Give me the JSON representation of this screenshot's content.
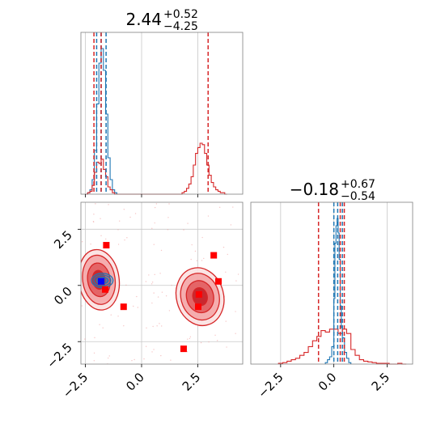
{
  "chart_data": [
    {
      "type": "histogram",
      "panel": "top-left",
      "title": {
        "base": "2.44",
        "sup": "+0.52",
        "sub": "−4.25"
      },
      "x_range": [
        -2.7,
        4.5
      ],
      "grid": true,
      "show_x_ticks": false,
      "series": [
        {
          "color": "#1f77b4",
          "bin_edges": [
            -2.4,
            -2.3,
            -2.2,
            -2.1,
            -2.0,
            -1.9,
            -1.8,
            -1.7,
            -1.6,
            -1.5,
            -1.4,
            -1.3,
            -1.2,
            -1.1
          ],
          "counts": [
            0.01,
            0.03,
            0.1,
            0.3,
            0.62,
            0.9,
            1.0,
            0.85,
            0.55,
            0.25,
            0.1,
            0.03,
            0.01
          ],
          "quantile_lines": [
            -2.0,
            -1.8,
            -1.58
          ]
        },
        {
          "color": "#d62728",
          "bin_edges": [
            -2.5,
            -2.4,
            -2.3,
            -2.2,
            -2.1,
            -2.0,
            -1.9,
            -1.8,
            -1.7,
            -1.6,
            -1.5,
            -1.4,
            -1.3,
            -1.2,
            -1.1,
            -1.0,
            -0.9,
            -0.8,
            -0.7,
            -0.6,
            -0.5,
            -0.4,
            -0.3,
            -0.2,
            -0.1,
            0.0,
            0.1,
            0.2,
            0.3,
            0.4,
            0.5,
            0.6,
            0.7,
            0.8,
            0.9,
            1.0,
            1.1,
            1.2,
            1.3,
            1.4,
            1.5,
            1.6,
            1.7,
            1.8,
            1.9,
            2.0,
            2.1,
            2.2,
            2.3,
            2.4,
            2.5,
            2.6,
            2.7,
            2.8,
            2.9,
            3.0,
            3.1,
            3.2,
            3.3,
            3.4,
            3.5,
            3.6,
            3.7,
            3.8
          ],
          "counts": [
            0.0,
            0.01,
            0.02,
            0.06,
            0.15,
            0.22,
            0.21,
            0.24,
            0.17,
            0.12,
            0.05,
            0.03,
            0.01,
            0.0,
            0.0,
            0.0,
            0.0,
            0.0,
            0.0,
            0.0,
            0.0,
            0.0,
            0.0,
            0.0,
            0.0,
            0.0,
            0.0,
            0.0,
            0.0,
            0.0,
            0.0,
            0.0,
            0.0,
            0.0,
            0.0,
            0.0,
            0.0,
            0.0,
            0.0,
            0.0,
            0.0,
            0.0,
            0.0,
            0.01,
            0.02,
            0.04,
            0.07,
            0.12,
            0.2,
            0.28,
            0.32,
            0.35,
            0.34,
            0.28,
            0.2,
            0.13,
            0.08,
            0.05,
            0.03,
            0.02,
            0.01,
            0.01,
            0.0
          ],
          "quantile_lines": [
            -2.12,
            -1.8,
            2.96
          ]
        }
      ]
    },
    {
      "type": "histogram",
      "panel": "bottom-right",
      "title": {
        "base": "−0.18",
        "sup": "+0.67",
        "sub": "−0.54"
      },
      "x_range": [
        -3.9,
        3.7
      ],
      "x_ticks": [
        -2.5,
        0.0,
        2.5
      ],
      "x_tick_labels": [
        "−2.5",
        "0.0",
        "2.5"
      ],
      "grid": true,
      "series": [
        {
          "color": "#1f77b4",
          "bin_edges": [
            -0.4,
            -0.3,
            -0.2,
            -0.1,
            0.0,
            0.05,
            0.1,
            0.15,
            0.2,
            0.25,
            0.3,
            0.35,
            0.4,
            0.5,
            0.6,
            0.7,
            0.8
          ],
          "counts": [
            0.01,
            0.03,
            0.05,
            0.12,
            0.45,
            0.83,
            0.95,
            1.0,
            0.9,
            0.72,
            0.4,
            0.25,
            0.18,
            0.08,
            0.04,
            0.01
          ],
          "quantile_lines": [
            0.0,
            0.18,
            0.4
          ]
        },
        {
          "color": "#d62728",
          "bin_edges": [
            -2.6,
            -2.4,
            -2.2,
            -2.0,
            -1.8,
            -1.6,
            -1.4,
            -1.2,
            -1.0,
            -0.8,
            -0.6,
            -0.4,
            -0.2,
            0.0,
            0.2,
            0.4,
            0.6,
            0.8,
            1.0,
            1.2,
            1.4,
            1.6,
            1.8,
            2.0,
            2.2,
            2.4,
            2.6,
            2.8,
            3.0,
            3.2,
            3.4
          ],
          "counts": [
            0.005,
            0.01,
            0.02,
            0.03,
            0.04,
            0.06,
            0.08,
            0.12,
            0.16,
            0.19,
            0.23,
            0.22,
            0.24,
            0.24,
            0.21,
            0.24,
            0.21,
            0.1,
            0.06,
            0.03,
            0.02,
            0.015,
            0.01,
            0.005,
            0.005,
            0.005,
            0.0,
            0.0,
            0.005,
            0.0
          ],
          "quantile_lines": [
            -0.72,
            0.3,
            0.49
          ]
        }
      ]
    },
    {
      "type": "contour",
      "panel": "bottom-left",
      "x_range": [
        -2.7,
        4.5
      ],
      "y_range": [
        -3.5,
        3.7
      ],
      "x_ticks": [
        -2.5,
        0.0,
        2.5
      ],
      "x_tick_labels": [
        "−2.5",
        "0.0",
        "2.5"
      ],
      "y_ticks": [
        -2.5,
        0.0,
        2.5
      ],
      "y_tick_labels": [
        "−2.5",
        "0.0",
        "2.5"
      ],
      "grid": true,
      "red_contours": [
        {
          "center": [
            -1.9,
            0.25
          ],
          "levels": [
            {
              "rx": 0.9,
              "ry": 1.35,
              "rot": -8
            },
            {
              "rx": 0.72,
              "ry": 1.1,
              "rot": -8
            },
            {
              "rx": 0.5,
              "ry": 0.75,
              "rot": -8
            },
            {
              "rx": 0.28,
              "ry": 0.42,
              "rot": -8
            }
          ]
        },
        {
          "center": [
            2.6,
            -0.5
          ],
          "levels": [
            {
              "rx": 1.05,
              "ry": 1.3,
              "rot": -15
            },
            {
              "rx": 0.85,
              "ry": 1.05,
              "rot": -15
            },
            {
              "rx": 0.6,
              "ry": 0.72,
              "rot": -15
            },
            {
              "rx": 0.32,
              "ry": 0.4,
              "rot": -15
            }
          ]
        }
      ],
      "blue_contours": [
        {
          "center": [
            -1.75,
            0.22
          ],
          "levels": [
            {
              "rx": 0.48,
              "ry": 0.32
            },
            {
              "rx": 0.38,
              "ry": 0.24
            },
            {
              "rx": 0.26,
              "ry": 0.15
            }
          ]
        }
      ],
      "red_points": [
        [
          -1.57,
          1.79
        ],
        [
          -1.62,
          -0.18
        ],
        [
          -0.8,
          -0.95
        ],
        [
          3.21,
          1.34
        ],
        [
          3.42,
          0.18
        ],
        [
          2.55,
          -0.4
        ],
        [
          2.52,
          -0.95
        ],
        [
          1.87,
          -2.82
        ]
      ],
      "blue_points": [
        [
          -1.8,
          0.18
        ]
      ]
    }
  ]
}
